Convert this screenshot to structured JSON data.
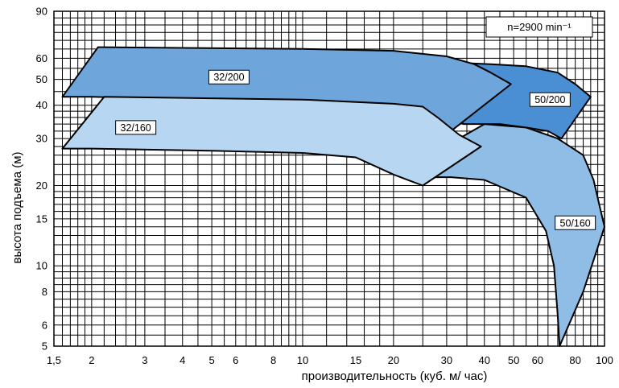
{
  "chart_data": {
    "type": "area",
    "xlabel": "производительность (куб. м/ час)",
    "ylabel": "высота подъема (м)",
    "xscale": "log",
    "yscale": "log",
    "xlim": [
      1.5,
      100
    ],
    "ylim": [
      5,
      90
    ],
    "grid": true,
    "x_ticks": [
      {
        "value": 1.5,
        "label": "1,5"
      },
      {
        "value": 2,
        "label": "2"
      },
      {
        "value": 3,
        "label": "3"
      },
      {
        "value": 4,
        "label": "4"
      },
      {
        "value": 5,
        "label": "5"
      },
      {
        "value": 6,
        "label": "6"
      },
      {
        "value": 8,
        "label": "8"
      },
      {
        "value": 10,
        "label": "10"
      },
      {
        "value": 15,
        "label": "15"
      },
      {
        "value": 20,
        "label": "20"
      },
      {
        "value": 30,
        "label": "30"
      },
      {
        "value": 40,
        "label": "40"
      },
      {
        "value": 50,
        "label": "50"
      },
      {
        "value": 60,
        "label": "60"
      },
      {
        "value": 80,
        "label": "80"
      },
      {
        "value": 100,
        "label": "100"
      }
    ],
    "y_ticks": [
      {
        "value": 5,
        "label": "5"
      },
      {
        "value": 6,
        "label": "6"
      },
      {
        "value": 8,
        "label": "8"
      },
      {
        "value": 10,
        "label": "10"
      },
      {
        "value": 15,
        "label": "15"
      },
      {
        "value": 20,
        "label": "20"
      },
      {
        "value": 30,
        "label": "30"
      },
      {
        "value": 40,
        "label": "40"
      },
      {
        "value": 50,
        "label": "50"
      },
      {
        "value": 60,
        "label": "60"
      },
      {
        "value": 90,
        "label": "90"
      }
    ],
    "speed_label": "n=2900 min⁻¹",
    "regions": [
      {
        "name": "50/160",
        "color": "#8fbde6",
        "label_at": [
          80,
          14.5
        ],
        "points": [
          [
            26,
            21.5
          ],
          [
            33,
            30
          ],
          [
            40,
            34
          ],
          [
            55,
            33
          ],
          [
            70,
            30
          ],
          [
            85,
            26
          ],
          [
            92,
            21
          ],
          [
            96,
            17
          ],
          [
            100,
            14
          ],
          [
            85,
            8
          ],
          [
            71,
            5
          ],
          [
            70,
            6.5
          ],
          [
            68,
            10
          ],
          [
            64,
            13.5
          ],
          [
            55,
            18
          ],
          [
            40,
            21
          ],
          [
            31,
            21.5
          ]
        ]
      },
      {
        "name": "50/200",
        "color": "#4a8fd3",
        "label_at": [
          66,
          42
        ],
        "points": [
          [
            29,
            58
          ],
          [
            42,
            57
          ],
          [
            55,
            56
          ],
          [
            70,
            53
          ],
          [
            80,
            48
          ],
          [
            90,
            43
          ],
          [
            72,
            30
          ],
          [
            65,
            32
          ],
          [
            55,
            33
          ],
          [
            45,
            34
          ],
          [
            34,
            34
          ]
        ]
      },
      {
        "name": "32/200",
        "color": "#6ea6dc",
        "label_at": [
          5.7,
          51
        ],
        "points": [
          [
            1.6,
            43
          ],
          [
            2.1,
            66
          ],
          [
            10,
            65
          ],
          [
            20,
            64
          ],
          [
            30,
            61
          ],
          [
            37,
            57
          ],
          [
            42,
            53
          ],
          [
            49,
            48
          ],
          [
            31,
            32
          ],
          [
            25,
            38
          ],
          [
            20,
            39.5
          ],
          [
            10,
            41
          ],
          [
            5,
            42
          ],
          [
            2,
            43
          ]
        ]
      },
      {
        "name": "32/160",
        "color": "#b6d6f2",
        "label_at": [
          2.8,
          33
        ],
        "points": [
          [
            1.6,
            27.5
          ],
          [
            2.2,
            43
          ],
          [
            10,
            42
          ],
          [
            20,
            40.5
          ],
          [
            25,
            39.5
          ],
          [
            28,
            36
          ],
          [
            33,
            31
          ],
          [
            39,
            28
          ],
          [
            25,
            20
          ],
          [
            20,
            22
          ],
          [
            15,
            25.5
          ],
          [
            10,
            26.5
          ],
          [
            5,
            27
          ],
          [
            2,
            27.5
          ]
        ]
      }
    ]
  }
}
